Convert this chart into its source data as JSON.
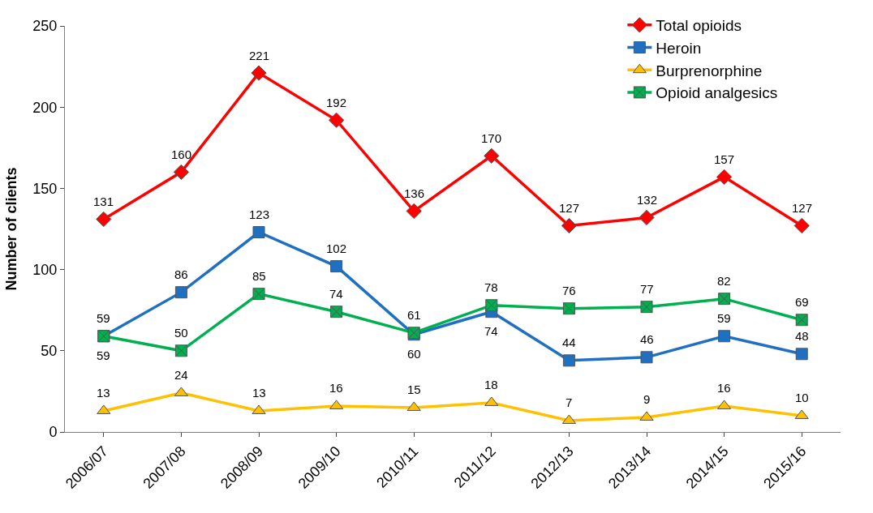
{
  "chart_data": {
    "type": "line",
    "ylabel": "Number of clients",
    "categories": [
      "2006/07",
      "2007/08",
      "2008/09",
      "2009/10",
      "2010/11",
      "2011/12",
      "2012/13",
      "2013/14",
      "2014/15",
      "2015/16"
    ],
    "series": [
      {
        "name": "Total opioids",
        "color": "#ff0000",
        "marker": "diamond",
        "values": [
          131,
          160,
          221,
          192,
          136,
          170,
          127,
          132,
          157,
          127
        ]
      },
      {
        "name": "Heroin",
        "color": "#1f70c1",
        "marker": "square",
        "values": [
          59,
          86,
          123,
          102,
          60,
          74,
          44,
          46,
          59,
          48
        ]
      },
      {
        "name": "Burprenorphine",
        "color": "#ffc000",
        "marker": "triangle",
        "values": [
          13,
          24,
          13,
          16,
          15,
          18,
          7,
          9,
          16,
          10
        ]
      },
      {
        "name": "Opioid analgesics",
        "color": "#00b050",
        "marker": "cross",
        "values": [
          59,
          50,
          85,
          74,
          61,
          78,
          76,
          77,
          82,
          69
        ]
      }
    ],
    "ylim": [
      0,
      250
    ],
    "yticks": [
      0,
      50,
      100,
      150,
      200,
      250
    ],
    "legend": "top right",
    "data_labels": true,
    "line_style": "solid"
  }
}
